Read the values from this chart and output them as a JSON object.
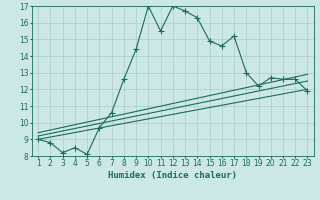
{
  "xlabel": "Humidex (Indice chaleur)",
  "bg_color": "#cce8e4",
  "line_color": "#1a6b5a",
  "grid_color": "#aaceca",
  "xlim": [
    0.5,
    23.5
  ],
  "ylim": [
    8,
    17
  ],
  "xticks": [
    1,
    2,
    3,
    4,
    5,
    6,
    7,
    8,
    9,
    10,
    11,
    12,
    13,
    14,
    15,
    16,
    17,
    18,
    19,
    20,
    21,
    22,
    23
  ],
  "yticks": [
    8,
    9,
    10,
    11,
    12,
    13,
    14,
    15,
    16,
    17
  ],
  "line1_x": [
    1,
    2,
    3,
    4,
    5,
    6,
    7,
    8,
    9,
    10,
    11,
    12,
    13,
    14,
    15,
    16,
    17,
    18,
    19,
    20,
    21,
    22,
    23
  ],
  "line1_y": [
    9.0,
    8.8,
    8.2,
    8.5,
    8.1,
    9.7,
    10.6,
    12.6,
    14.4,
    17.0,
    15.5,
    17.0,
    16.7,
    16.3,
    14.9,
    14.6,
    15.2,
    13.0,
    12.2,
    12.7,
    12.6,
    12.6,
    11.9
  ],
  "line2_x": [
    1,
    23
  ],
  "line2_y": [
    9.0,
    12.0
  ],
  "line3_x": [
    1,
    23
  ],
  "line3_y": [
    9.2,
    12.5
  ],
  "line4_x": [
    1,
    23
  ],
  "line4_y": [
    9.4,
    12.9
  ],
  "tick_fontsize": 5.5,
  "label_fontsize": 6.5
}
